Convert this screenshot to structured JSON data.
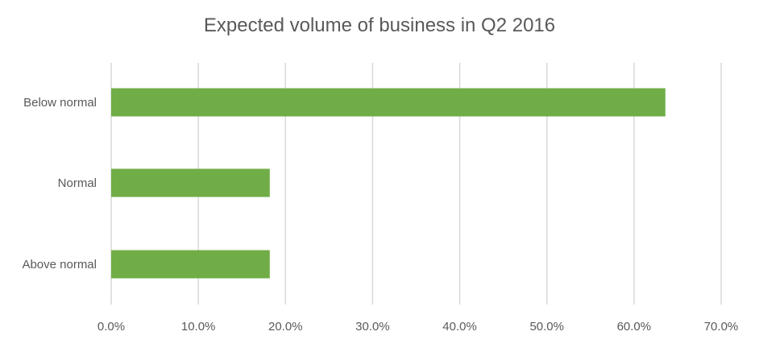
{
  "chart_data": {
    "type": "bar",
    "orientation": "horizontal",
    "title": "Expected volume of business in Q2 2016",
    "xlabel": "",
    "ylabel": "",
    "categories": [
      "Below normal",
      "Normal",
      "Above normal"
    ],
    "series": [
      {
        "values": [
          63.6,
          18.2,
          18.2
        ]
      }
    ],
    "xlim": [
      0,
      70
    ],
    "x_ticks": [
      "0.0%",
      "10.0%",
      "20.0%",
      "30.0%",
      "40.0%",
      "50.0%",
      "60.0%",
      "70.0%"
    ],
    "grid": "vertical",
    "legend": "none",
    "bar_color": "#70AD47",
    "grid_color": "#D9D9D9"
  }
}
